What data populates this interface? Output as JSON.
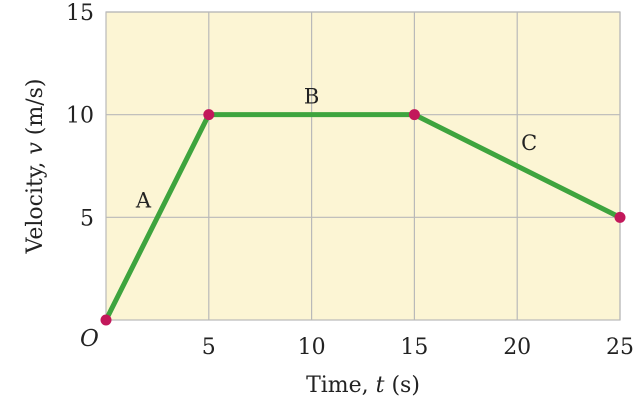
{
  "chart_data": {
    "type": "line",
    "xlabel_parts": [
      "Time, ",
      "t",
      " (s)"
    ],
    "ylabel_parts": [
      "Velocity, ",
      "v",
      " (m/s)"
    ],
    "x_ticks": [
      "5",
      "10",
      "15",
      "20",
      "25"
    ],
    "y_ticks": [
      "5",
      "10",
      "15"
    ],
    "origin_label": "O",
    "xlim": [
      0,
      25
    ],
    "ylim": [
      0,
      15
    ],
    "grid": true,
    "series": [
      {
        "x": [
          0,
          5,
          15,
          25
        ],
        "y": [
          0,
          10,
          10,
          5
        ]
      }
    ],
    "segment_labels": [
      {
        "text": "A",
        "x": 2.5,
        "y": 5
      },
      {
        "text": "B",
        "x": 10,
        "y": 10
      },
      {
        "text": "C",
        "x": 20,
        "y": 7.5
      }
    ],
    "colors": {
      "background": "#fcf5d4",
      "grid": "#b9b9b9",
      "line": "#3ea43e",
      "marker": "#c2185b"
    }
  }
}
